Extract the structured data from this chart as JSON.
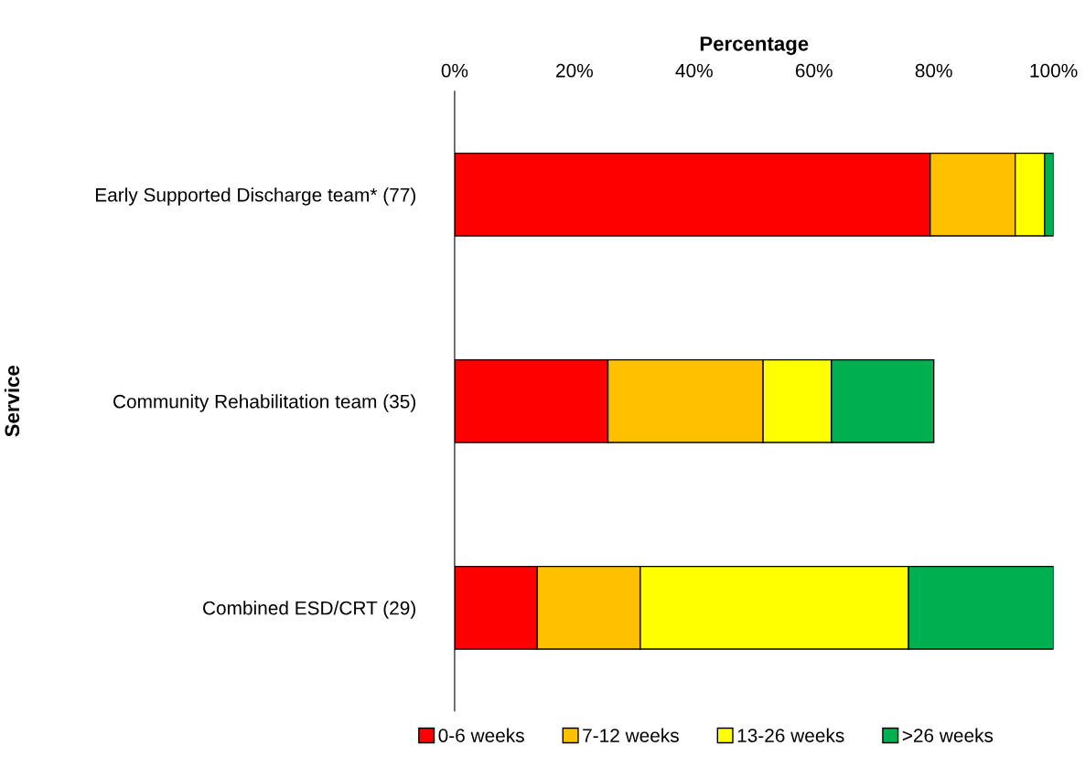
{
  "chart_data": {
    "type": "bar",
    "orientation": "horizontal",
    "stacked": true,
    "xlabel": "Percentage",
    "ylabel": "Service",
    "categories": [
      "Early Supported Discharge team* (77)",
      "Community Rehabilitation team (35)",
      "Combined ESD/CRT (29)"
    ],
    "series": [
      {
        "name": "0-6 weeks",
        "color": "#ff0000",
        "values": [
          79.4,
          25.6,
          13.8
        ]
      },
      {
        "name": "7-12 weeks",
        "color": "#ffc000",
        "values": [
          14.2,
          25.9,
          17.2
        ]
      },
      {
        "name": "13-26 weeks",
        "color": "#ffff00",
        "values": [
          4.9,
          11.4,
          44.8
        ]
      },
      {
        "name": ">26 weeks",
        "color": "#00b050",
        "values": [
          1.5,
          17.1,
          24.2
        ]
      }
    ],
    "xlim": [
      0,
      100
    ],
    "xticks": [
      {
        "value": 0,
        "label": "0%"
      },
      {
        "value": 20,
        "label": "20%"
      },
      {
        "value": 40,
        "label": "40%"
      },
      {
        "value": 60,
        "label": "60%"
      },
      {
        "value": 80,
        "label": "80%"
      },
      {
        "value": 100,
        "label": "100%"
      }
    ],
    "grid": false,
    "legend": "bottom"
  }
}
